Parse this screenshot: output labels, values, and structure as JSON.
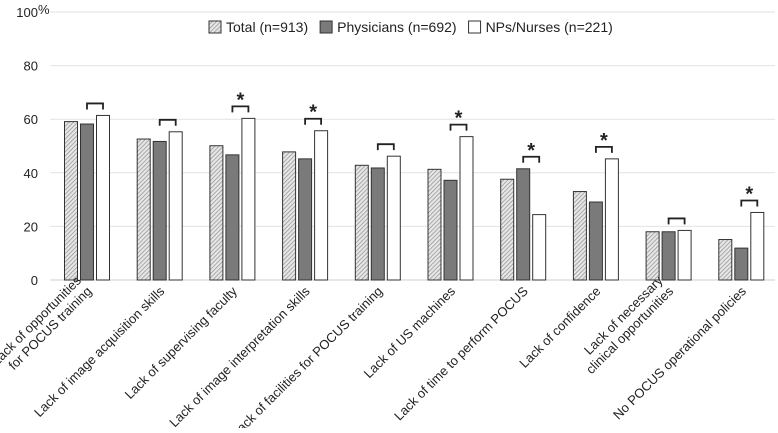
{
  "chart_data": {
    "type": "bar",
    "ylabel": "%",
    "ylim": [
      0,
      100
    ],
    "yticks": [
      0,
      20,
      40,
      60,
      80,
      100
    ],
    "grid": true,
    "legend_position": "top-center",
    "categories": [
      [
        "Lack of opportunities",
        "for POCUS training"
      ],
      [
        "Lack of image acquisition skills"
      ],
      [
        "Lack of supervising faculty"
      ],
      [
        "Lack of image interpretation skills"
      ],
      [
        "Lack of facilities for POCUS training"
      ],
      [
        "Lack of US machines"
      ],
      [
        "Lack of time to perform POCUS"
      ],
      [
        "Lack of confidence"
      ],
      [
        "Lack of necessary",
        "clinical opportunities"
      ],
      [
        "No POCUS operational policies"
      ]
    ],
    "series": [
      {
        "name": "Total (n=913)",
        "style": "hatched",
        "color": "#bdbdbd",
        "values": [
          59.1,
          52.6,
          50.1,
          47.8,
          42.8,
          41.3,
          37.6,
          33.0,
          18.0,
          15.1
        ]
      },
      {
        "name": "Physicians (n=692)",
        "style": "solid",
        "color": "#7a7a7a",
        "values": [
          58.2,
          51.7,
          46.7,
          45.2,
          41.8,
          37.2,
          41.5,
          29.1,
          18.0,
          11.9
        ]
      },
      {
        "name": "NPs/Nurses (n=221)",
        "style": "outline",
        "color": "#ffffff",
        "values": [
          61.4,
          55.3,
          60.3,
          55.7,
          46.2,
          53.5,
          24.4,
          45.2,
          18.5,
          25.2
        ]
      }
    ],
    "significance_marker": "*",
    "significant": [
      false,
      false,
      true,
      true,
      false,
      true,
      true,
      true,
      false,
      true
    ]
  }
}
